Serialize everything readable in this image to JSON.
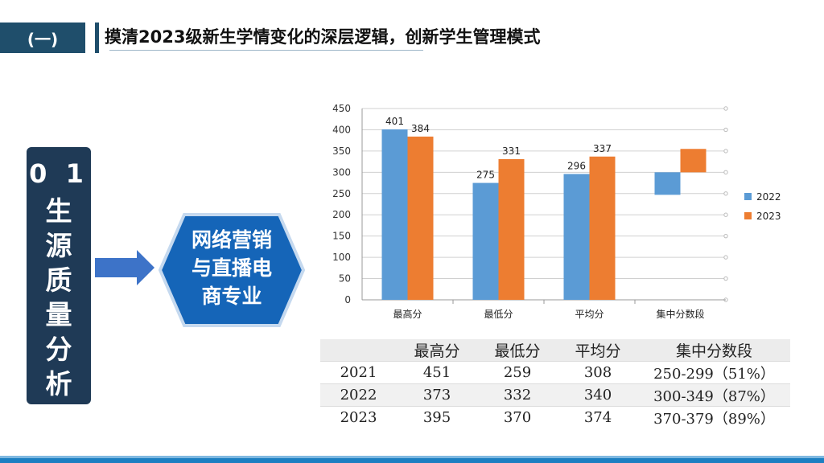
{
  "header": {
    "tab": "(一)",
    "title": "摸清2023级新生学情变化的深层逻辑，创新学生管理模式"
  },
  "side": {
    "number": "0 1",
    "lines": [
      "生",
      "源",
      "质",
      "量",
      "分",
      "析"
    ]
  },
  "hexagon": {
    "lines": [
      "网络营销",
      "与直播电",
      "商专业"
    ]
  },
  "colors": {
    "dark_navy": "#1f3a56",
    "header_blue": "#1f4e6b",
    "accent_blue": "#3d73c8",
    "hex_blue": "#1565b8",
    "series_2022": "#5b9bd5",
    "series_2023": "#ed7d31"
  },
  "chart_data": {
    "type": "bar",
    "categories": [
      "最高分",
      "最低分",
      "平均分",
      "集中分数段"
    ],
    "series": [
      {
        "name": "2022",
        "values": [
          401,
          275,
          296,
          null
        ],
        "range_last": [
          247,
          300
        ],
        "labels": [
          "401",
          "275",
          "296",
          ""
        ]
      },
      {
        "name": "2023",
        "values": [
          384,
          331,
          337,
          null
        ],
        "range_last": [
          300,
          355
        ],
        "labels": [
          "384",
          "331",
          "337",
          ""
        ]
      }
    ],
    "ylim": [
      0,
      450
    ],
    "yticks": [
      "0",
      "50",
      "100",
      "150",
      "200",
      "250",
      "300",
      "350",
      "400",
      "450"
    ],
    "grid": true,
    "legend": "right"
  },
  "table": {
    "headers": [
      "",
      "最高分",
      "最低分",
      "平均分",
      "集中分数段"
    ],
    "rows": [
      [
        "2021",
        "451",
        "259",
        "308",
        "250-299（51%）"
      ],
      [
        "2022",
        "373",
        "332",
        "340",
        "300-349（87%）"
      ],
      [
        "2023",
        "395",
        "370",
        "374",
        "370-379（89%）"
      ]
    ]
  }
}
